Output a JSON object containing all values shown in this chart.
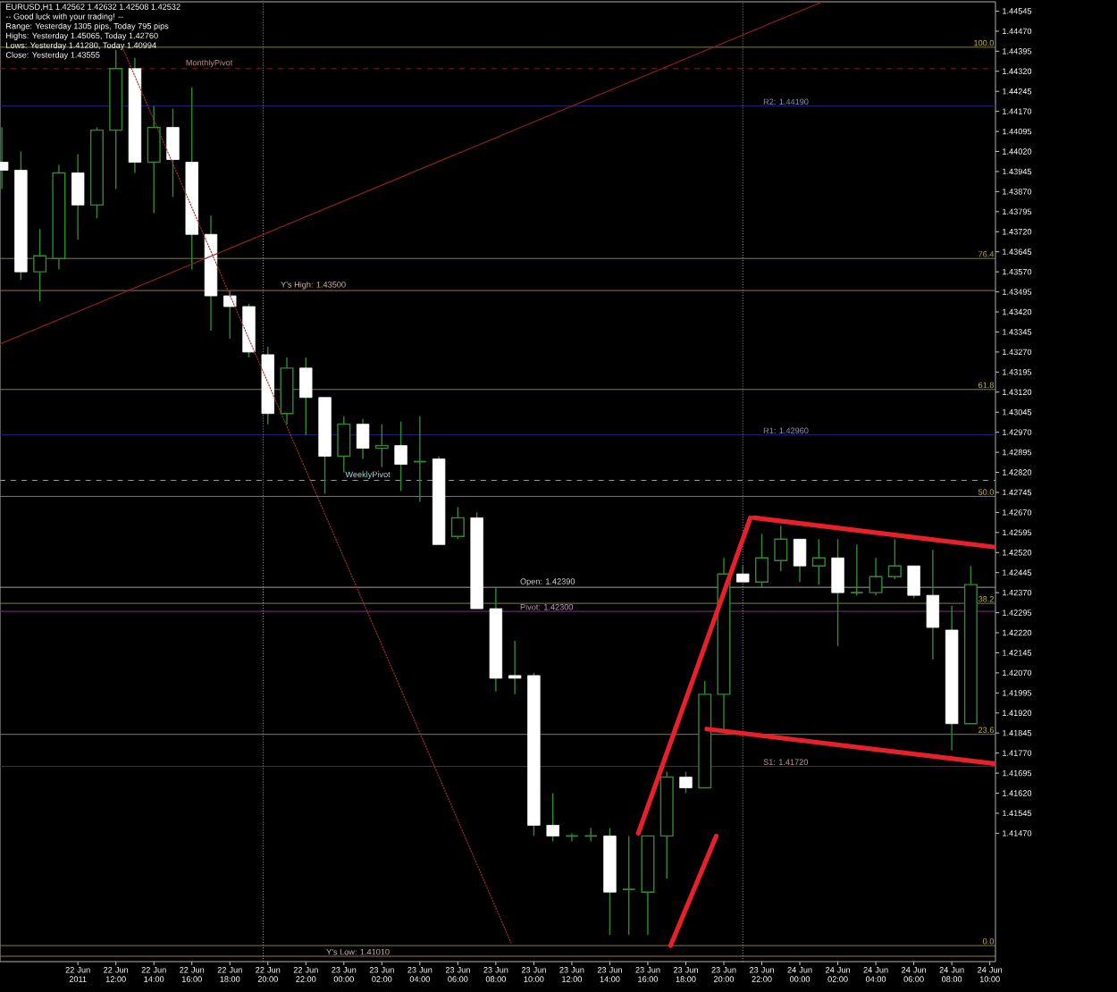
{
  "chart_data": {
    "type": "candlestick",
    "x": [
      "2011-06-22T06:00",
      "2011-06-22T07:00",
      "2011-06-22T08:00",
      "2011-06-22T09:00",
      "2011-06-22T10:00",
      "2011-06-22T11:00",
      "2011-06-22T12:00",
      "2011-06-22T13:00",
      "2011-06-22T14:00",
      "2011-06-22T15:00",
      "2011-06-22T16:00",
      "2011-06-22T17:00",
      "2011-06-22T18:00",
      "2011-06-22T19:00",
      "2011-06-22T20:00",
      "2011-06-22T21:00",
      "2011-06-22T22:00",
      "2011-06-22T23:00",
      "2011-06-23T00:00",
      "2011-06-23T01:00",
      "2011-06-23T02:00",
      "2011-06-23T03:00",
      "2011-06-23T04:00",
      "2011-06-23T05:00",
      "2011-06-23T06:00",
      "2011-06-23T07:00",
      "2011-06-23T08:00",
      "2011-06-23T09:00",
      "2011-06-23T10:00",
      "2011-06-23T11:00",
      "2011-06-23T12:00",
      "2011-06-23T13:00",
      "2011-06-23T14:00",
      "2011-06-23T15:00",
      "2011-06-23T16:00",
      "2011-06-23T17:00",
      "2011-06-23T18:00",
      "2011-06-23T19:00",
      "2011-06-23T20:00",
      "2011-06-23T21:00",
      "2011-06-23T22:00",
      "2011-06-23T23:00",
      "2011-06-24T00:00",
      "2011-06-24T01:00",
      "2011-06-24T02:00",
      "2011-06-24T03:00",
      "2011-06-24T04:00",
      "2011-06-24T05:00",
      "2011-06-24T06:00",
      "2011-06-24T07:00",
      "2011-06-24T08:00",
      "2011-06-24T09:00"
    ],
    "ohlc": [
      [
        1.4398,
        1.4411,
        1.4388,
        1.4395
      ],
      [
        1.4395,
        1.4402,
        1.4354,
        1.4357
      ],
      [
        1.4357,
        1.4373,
        1.4346,
        1.4363
      ],
      [
        1.4362,
        1.4397,
        1.4358,
        1.4394
      ],
      [
        1.4394,
        1.4401,
        1.4369,
        1.4382
      ],
      [
        1.4382,
        1.4411,
        1.4377,
        1.441
      ],
      [
        1.441,
        1.444,
        1.4388,
        1.4433
      ],
      [
        1.4433,
        1.4437,
        1.4394,
        1.4398
      ],
      [
        1.4398,
        1.4419,
        1.4379,
        1.4411
      ],
      [
        1.4411,
        1.4418,
        1.4385,
        1.4399
      ],
      [
        1.4398,
        1.4426,
        1.4358,
        1.4371
      ],
      [
        1.4371,
        1.4378,
        1.4335,
        1.4348
      ],
      [
        1.4348,
        1.435,
        1.4332,
        1.4344
      ],
      [
        1.4344,
        1.4345,
        1.4325,
        1.4327
      ],
      [
        1.4326,
        1.4329,
        1.43,
        1.4304
      ],
      [
        1.4304,
        1.4325,
        1.43,
        1.4321
      ],
      [
        1.4321,
        1.4325,
        1.4296,
        1.431
      ],
      [
        1.431,
        1.431,
        1.4274,
        1.4288
      ],
      [
        1.4288,
        1.4303,
        1.4282,
        1.43
      ],
      [
        1.43,
        1.4302,
        1.4287,
        1.4291
      ],
      [
        1.4291,
        1.43,
        1.4284,
        1.4292
      ],
      [
        1.4292,
        1.4301,
        1.4275,
        1.4285
      ],
      [
        1.4286,
        1.4303,
        1.4271,
        1.4286
      ],
      [
        1.4287,
        1.4288,
        1.4255,
        1.4255
      ],
      [
        1.4258,
        1.4269,
        1.4257,
        1.4265
      ],
      [
        1.4265,
        1.4267,
        1.4231,
        1.4231
      ],
      [
        1.4231,
        1.4239,
        1.42,
        1.4205
      ],
      [
        1.4206,
        1.4219,
        1.4199,
        1.4205
      ],
      [
        1.4206,
        1.4207,
        1.4146,
        1.415
      ],
      [
        1.415,
        1.4162,
        1.4144,
        1.4146
      ],
      [
        1.4146,
        1.4147,
        1.4144,
        1.4146
      ],
      [
        1.4146,
        1.4149,
        1.4144,
        1.4146
      ],
      [
        1.4146,
        1.4149,
        1.4109,
        1.4125
      ],
      [
        1.4126,
        1.4146,
        1.4109,
        1.4126
      ],
      [
        1.4125,
        1.4146,
        1.4109,
        1.4146
      ],
      [
        1.4146,
        1.417,
        1.413,
        1.4168
      ],
      [
        1.4168,
        1.417,
        1.4162,
        1.4164
      ],
      [
        1.4164,
        1.4204,
        1.4164,
        1.4199
      ],
      [
        1.4199,
        1.425,
        1.4186,
        1.4244
      ],
      [
        1.4244,
        1.4247,
        1.4241,
        1.4241
      ],
      [
        1.4241,
        1.4259,
        1.4239,
        1.425
      ],
      [
        1.4249,
        1.4262,
        1.4245,
        1.4257
      ],
      [
        1.4257,
        1.4257,
        1.4241,
        1.4247
      ],
      [
        1.4247,
        1.4257,
        1.424,
        1.425
      ],
      [
        1.425,
        1.4257,
        1.4217,
        1.4237
      ],
      [
        1.4237,
        1.4255,
        1.4236,
        1.4237
      ],
      [
        1.4237,
        1.425,
        1.4236,
        1.4243
      ],
      [
        1.4243,
        1.4257,
        1.4242,
        1.4247
      ],
      [
        1.4247,
        1.4247,
        1.4235,
        1.4236
      ],
      [
        1.4236,
        1.4253,
        1.4212,
        1.4224
      ],
      [
        1.4223,
        1.4232,
        1.4178,
        1.4188
      ],
      [
        1.4188,
        1.4247,
        1.4188,
        1.424
      ]
    ],
    "series": [
      {
        "type": "line",
        "color": "#e8202a",
        "x": [
          "2011-06-23T21:36",
          "2011-06-24T10:18"
        ],
        "values": [
          1.4265,
          1.4254
        ]
      },
      {
        "type": "line",
        "color": "#e8202a",
        "x": [
          "2011-06-23T19:06",
          "2011-06-24T10:18"
        ],
        "values": [
          1.4186,
          1.4173
        ]
      },
      {
        "type": "line",
        "color": "#e8202a",
        "x": [
          "2011-06-23T15:30",
          "2011-06-23T21:24"
        ],
        "values": [
          1.4147,
          1.4265
        ]
      },
      {
        "type": "line",
        "color": "#e8202a",
        "x": [
          "2011-06-23T17:12",
          "2011-06-23T19:36"
        ],
        "values": [
          1.4105,
          1.4146
        ]
      },
      {
        "type": "line",
        "color": "#8b2020",
        "x": [
          "2011-06-22T05:54",
          "2011-06-24T01:12"
        ],
        "values": [
          1.433,
          1.4458
        ]
      },
      {
        "type": "line",
        "color": "#a03030",
        "line_style": "dotted",
        "x": [
          "2011-06-22T12:24",
          "2011-06-23T08:48"
        ],
        "values": [
          1.444,
          1.4106
        ]
      }
    ],
    "xlim": [
      "2011-06-22T05:54",
      "2011-06-24T10:18"
    ],
    "ylim": [
      1.4099,
      1.4458
    ],
    "xticks": [
      {
        "value": "2011-06-22T10:00",
        "label": "22 Jun 2011"
      },
      {
        "value": "2011-06-22T12:00",
        "label": "22 Jun 12:00"
      },
      {
        "value": "2011-06-22T14:00",
        "label": "22 Jun 14:00"
      },
      {
        "value": "2011-06-22T16:00",
        "label": "22 Jun 16:00"
      },
      {
        "value": "2011-06-22T18:00",
        "label": "22 Jun 18:00"
      },
      {
        "value": "2011-06-22T20:00",
        "label": "22 Jun 20:00"
      },
      {
        "value": "2011-06-22T22:00",
        "label": "22 Jun 22:00"
      },
      {
        "value": "2011-06-23T00:00",
        "label": "23 Jun 00:00"
      },
      {
        "value": "2011-06-23T02:00",
        "label": "23 Jun 02:00"
      },
      {
        "value": "2011-06-23T04:00",
        "label": "23 Jun 04:00"
      },
      {
        "value": "2011-06-23T06:00",
        "label": "23 Jun 06:00"
      },
      {
        "value": "2011-06-23T08:00",
        "label": "23 Jun 08:00"
      },
      {
        "value": "2011-06-23T10:00",
        "label": "23 Jun 10:00"
      },
      {
        "value": "2011-06-23T12:00",
        "label": "23 Jun 12:00"
      },
      {
        "value": "2011-06-23T14:00",
        "label": "23 Jun 14:00"
      },
      {
        "value": "2011-06-23T16:00",
        "label": "23 Jun 16:00"
      },
      {
        "value": "2011-06-23T18:00",
        "label": "23 Jun 18:00"
      },
      {
        "value": "2011-06-23T20:00",
        "label": "23 Jun 20:00"
      },
      {
        "value": "2011-06-23T22:00",
        "label": "23 Jun 22:00"
      },
      {
        "value": "2011-06-24T00:00",
        "label": "24 Jun 00:00"
      },
      {
        "value": "2011-06-24T02:00",
        "label": "24 Jun 02:00"
      },
      {
        "value": "2011-06-24T04:00",
        "label": "24 Jun 04:00"
      },
      {
        "value": "2011-06-24T06:00",
        "label": "24 Jun 06:00"
      },
      {
        "value": "2011-06-24T08:00",
        "label": "24 Jun 08:00"
      },
      {
        "value": "2011-06-24T10:00",
        "label": "24 Jun 10:00"
      }
    ],
    "yticks": [
      {
        "value": 1.44545,
        "label": "1.44545"
      },
      {
        "value": 1.4447,
        "label": "1.44470"
      },
      {
        "value": 1.44395,
        "label": "1.44395"
      },
      {
        "value": 1.4432,
        "label": "1.44320"
      },
      {
        "value": 1.44245,
        "label": "1.44245"
      },
      {
        "value": 1.4417,
        "label": "1.44170"
      },
      {
        "value": 1.44095,
        "label": "1.44095"
      },
      {
        "value": 1.4402,
        "label": "1.44020"
      },
      {
        "value": 1.43945,
        "label": "1.43945"
      },
      {
        "value": 1.4387,
        "label": "1.43870"
      },
      {
        "value": 1.43795,
        "label": "1.43795"
      },
      {
        "value": 1.4372,
        "label": "1.43720"
      },
      {
        "value": 1.43645,
        "label": "1.43645"
      },
      {
        "value": 1.4357,
        "label": "1.43570"
      },
      {
        "value": 1.43495,
        "label": "1.43495"
      },
      {
        "value": 1.4342,
        "label": "1.43420"
      },
      {
        "value": 1.43345,
        "label": "1.43345"
      },
      {
        "value": 1.4327,
        "label": "1.43270"
      },
      {
        "value": 1.43195,
        "label": "1.43195"
      },
      {
        "value": 1.4312,
        "label": "1.43120"
      },
      {
        "value": 1.43045,
        "label": "1.43045"
      },
      {
        "value": 1.4297,
        "label": "1.42970"
      },
      {
        "value": 1.42895,
        "label": "1.42895"
      },
      {
        "value": 1.4282,
        "label": "1.42820"
      },
      {
        "value": 1.42745,
        "label": "1.42745"
      },
      {
        "value": 1.4267,
        "label": "1.42670"
      },
      {
        "value": 1.42595,
        "label": "1.42595"
      },
      {
        "value": 1.4252,
        "label": "1.42520"
      },
      {
        "value": 1.42445,
        "label": "1.42445"
      },
      {
        "value": 1.4237,
        "label": "1.42370"
      },
      {
        "value": 1.42295,
        "label": "1.42295"
      },
      {
        "value": 1.4222,
        "label": "1.42220"
      },
      {
        "value": 1.42145,
        "label": "1.42145"
      },
      {
        "value": 1.4207,
        "label": "1.42070"
      },
      {
        "value": 1.41995,
        "label": "1.41995"
      },
      {
        "value": 1.4192,
        "label": "1.41920"
      },
      {
        "value": 1.41845,
        "label": "1.41845"
      },
      {
        "value": 1.4177,
        "label": "1.41770"
      },
      {
        "value": 1.41695,
        "label": "1.41695"
      },
      {
        "value": 1.4162,
        "label": "1.41620"
      },
      {
        "value": 1.41545,
        "label": "1.41545"
      },
      {
        "value": 1.4147,
        "label": "1.41470"
      }
    ],
    "ref_lines": [
      {
        "axis": "y",
        "value": 1.4441,
        "color": "#808040"
      },
      {
        "axis": "y",
        "value": 1.4362,
        "color": "#808040"
      },
      {
        "axis": "y",
        "value": 1.4313,
        "color": "#808040"
      },
      {
        "axis": "y",
        "value": 1.4273,
        "color": "#808040"
      },
      {
        "axis": "y",
        "value": 1.4233,
        "color": "#808040"
      },
      {
        "axis": "y",
        "value": 1.4184,
        "color": "#808040"
      },
      {
        "axis": "y",
        "value": 1.4105,
        "color": "#808040"
      },
      {
        "axis": "y",
        "value": 1.4419,
        "label": "R2: 1.44190",
        "color": "#202080"
      },
      {
        "axis": "y",
        "value": 1.4296,
        "label": "R1: 1.42960",
        "color": "#202080"
      },
      {
        "axis": "y",
        "value": 1.435,
        "label": "Y's High: 1.43500",
        "color": "#a07050"
      },
      {
        "axis": "y",
        "value": 1.4239,
        "label": "Open: 1.42390",
        "color": "#a0a0a0"
      },
      {
        "axis": "y",
        "value": 1.423,
        "label": "Pivot: 1.42300",
        "color": "#803080"
      },
      {
        "axis": "y",
        "value": 1.4172,
        "label": "S1: 1.41720",
        "color": "#802020"
      },
      {
        "axis": "y",
        "value": 1.4101,
        "label": "Y's Low: 1.41010",
        "color": "#a07050"
      },
      {
        "axis": "y",
        "value": 1.4433,
        "label": "MonthlyPivot",
        "color": "#802020",
        "line_style": "dashed"
      },
      {
        "axis": "y",
        "value": 1.4279,
        "label": "WeeklyPivot",
        "color": "#40c0c0",
        "line_style": "dashed"
      },
      {
        "axis": "x",
        "value": "2011-06-22T19:45",
        "color": "#a0a0a0",
        "line_style": "dotted"
      },
      {
        "axis": "x",
        "value": "2011-06-23T21:00",
        "color": "#a0a0a0",
        "line_style": "dotted"
      }
    ],
    "annotations": [
      "EURUSD,H1  1.42562 1.42632 1.42508 1.42532",
      "-- Good luck with your trading! --",
      "Range: Yesterday 1305 pips, Today 795 pips",
      "Highs: Yesterday 1.45065, Today 1.42760",
      "Lows: Yesterday 1.41280, Today 1.40994",
      "Close: Yesterday 1.43555",
      {
        "text": "100.0",
        "x": "2011-06-24T10:18",
        "y": 1.4441
      },
      {
        "text": "76.4",
        "x": "2011-06-24T10:18",
        "y": 1.4362
      },
      {
        "text": "61.8",
        "x": "2011-06-24T10:18",
        "y": 1.4313
      },
      {
        "text": "50.0",
        "x": "2011-06-24T10:18",
        "y": 1.4273
      },
      {
        "text": "38.2",
        "x": "2011-06-24T10:18",
        "y": 1.4233
      },
      {
        "text": "23.6",
        "x": "2011-06-24T10:18",
        "y": 1.4184
      },
      {
        "text": "0.0",
        "x": "2011-06-24T10:18",
        "y": 1.4105
      }
    ]
  }
}
